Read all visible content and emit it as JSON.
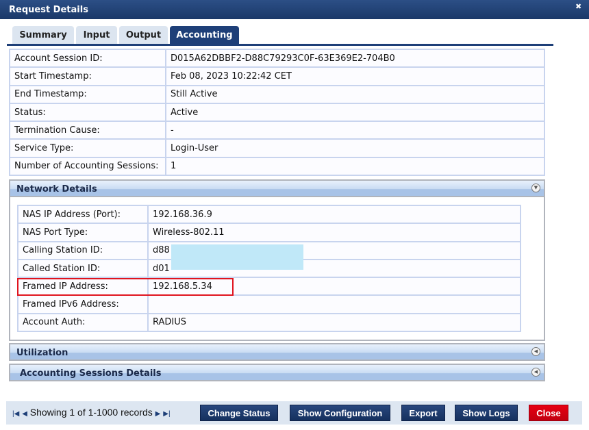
{
  "window": {
    "title": "Request Details",
    "close_icon": "close-icon"
  },
  "tabs": [
    {
      "label": "Summary"
    },
    {
      "label": "Input"
    },
    {
      "label": "Output"
    },
    {
      "label": "Accounting",
      "active": true
    }
  ],
  "accounting": [
    {
      "label": "Account Session ID:",
      "value": "D015A62DBBF2-D88C79293C0F-63E369E2-704B0"
    },
    {
      "label": "Start Timestamp:",
      "value": "Feb 08, 2023 10:22:42 CET"
    },
    {
      "label": "End Timestamp:",
      "value": "Still Active"
    },
    {
      "label": "Status:",
      "value": "Active"
    },
    {
      "label": "Termination Cause:",
      "value": "-"
    },
    {
      "label": "Service Type:",
      "value": "Login-User"
    },
    {
      "label": "Number of Accounting Sessions:",
      "value": "1"
    }
  ],
  "network": {
    "title": "Network Details",
    "rows": [
      {
        "label": "NAS IP Address (Port):",
        "value": "192.168.36.9"
      },
      {
        "label": "NAS Port Type:",
        "value": "Wireless-802.11"
      },
      {
        "label": "Calling Station ID:",
        "value": "d88"
      },
      {
        "label": "Called Station ID:",
        "value": "d01"
      },
      {
        "label": "Framed IP Address:",
        "value": "192.168.5.34"
      },
      {
        "label": "Framed IPv6 Address:",
        "value": ""
      },
      {
        "label": "Account Auth:",
        "value": "RADIUS"
      }
    ]
  },
  "sections": {
    "utilization": "Utilization",
    "sessions": "Accounting Sessions Details"
  },
  "footer": {
    "pager": "Showing 1 of 1-1000 records",
    "buttons": {
      "change_status": "Change Status",
      "show_config": "Show Configuration",
      "export": "Export",
      "show_logs": "Show Logs",
      "close": "Close"
    }
  },
  "colors": {
    "highlight": "#e0141e",
    "primary": "#1e3f78",
    "close": "#e60012"
  }
}
